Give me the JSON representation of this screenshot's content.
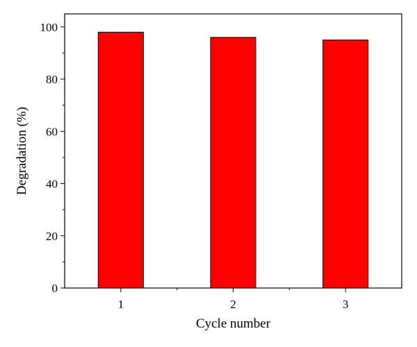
{
  "chart_data": {
    "type": "bar",
    "categories": [
      "1",
      "2",
      "3"
    ],
    "values": [
      98,
      96,
      95
    ],
    "xlabel": "Cycle number",
    "ylabel": "Degradation (%)",
    "ylim": [
      0,
      105
    ],
    "yticks": [
      0,
      20,
      40,
      60,
      80,
      100
    ],
    "grid": false,
    "bar_color": "#ff0000",
    "bar_edge_color": "#000000"
  }
}
